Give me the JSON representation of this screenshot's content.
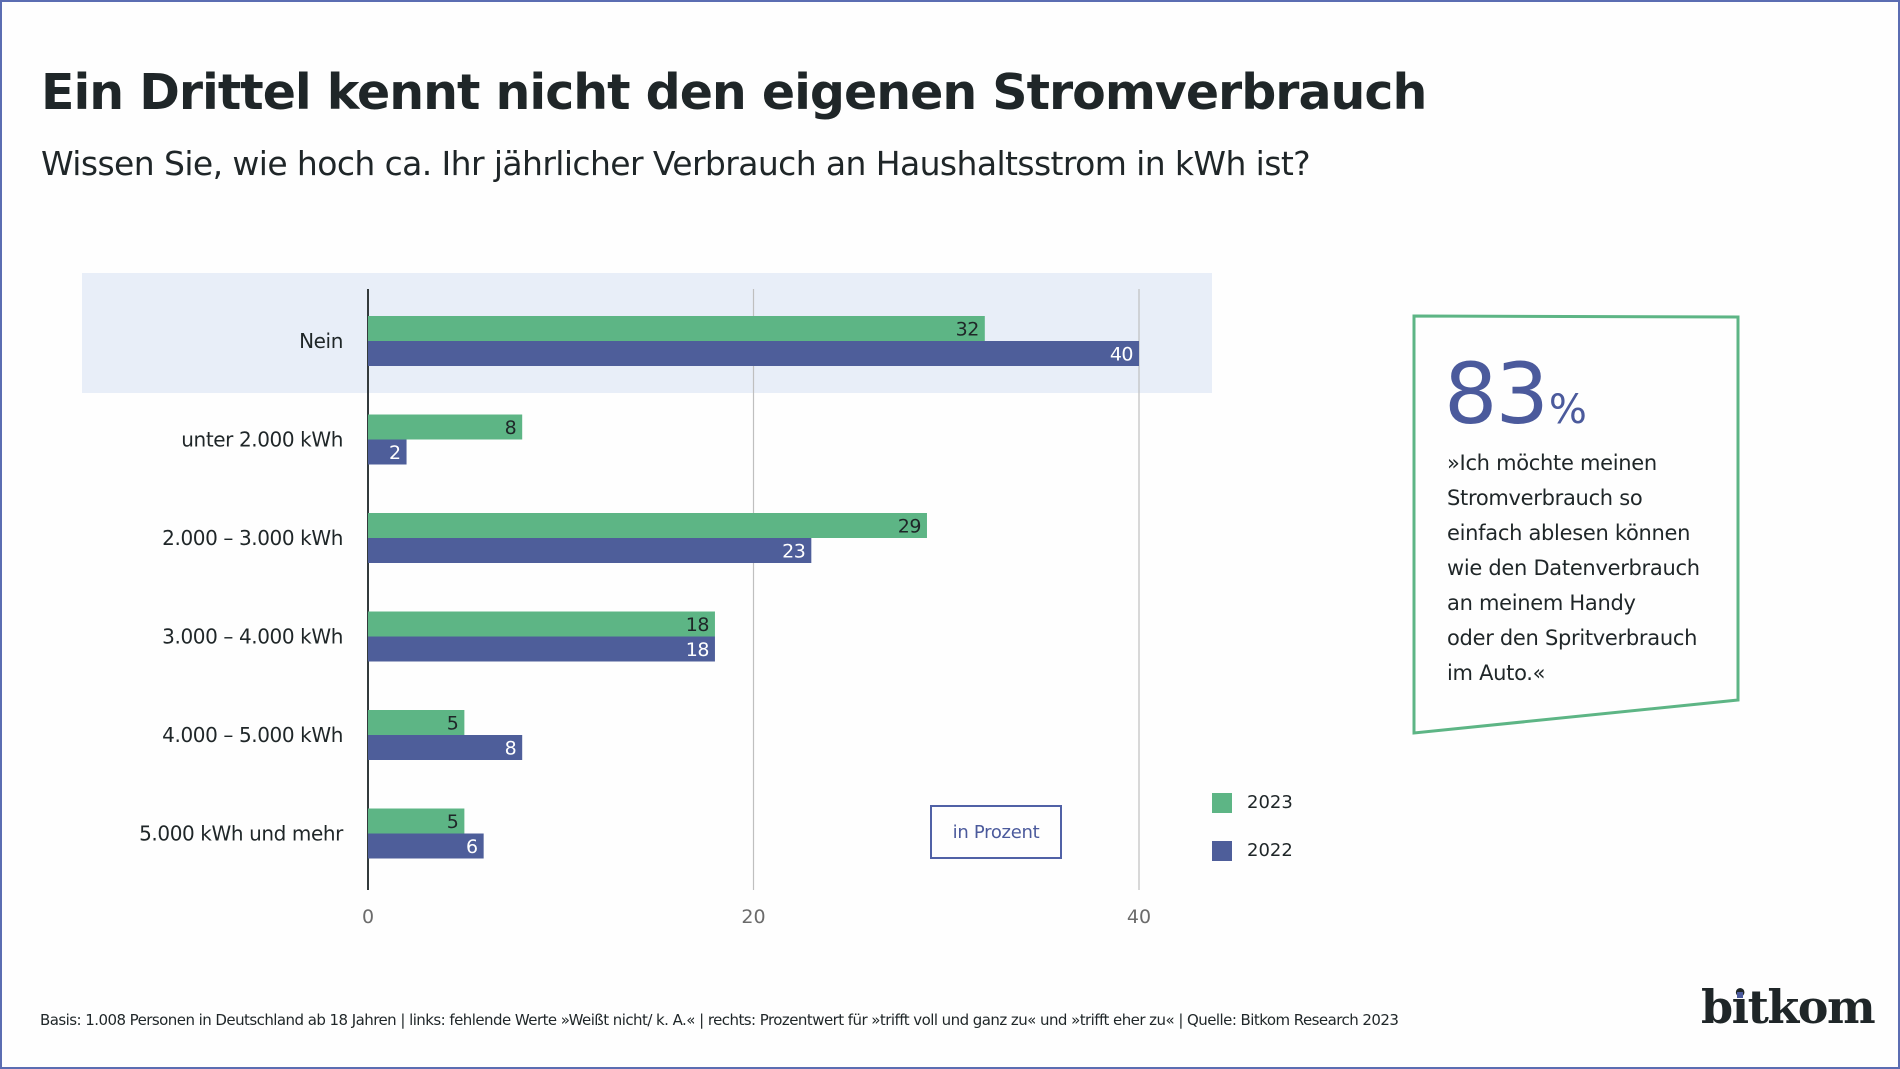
{
  "header": {
    "title": "Ein Drittel kennt nicht den eigenen Stromverbrauch",
    "subtitle": "Wissen Sie, wie hoch ca. Ihr jährlicher Verbrauch an Haushaltsstrom in kWh ist?"
  },
  "colors": {
    "series_2023": "#5db585",
    "series_2022": "#4e5e9a",
    "highlight_band": "#e8eef8",
    "axis": "#333a3c",
    "gridline": "#bfbfbf",
    "callout_border": "#5db585",
    "accent": "#4b5a9c",
    "frame": "#5b6db2"
  },
  "chart_data": {
    "type": "bar",
    "orientation": "horizontal",
    "title": "Ein Drittel kennt nicht den eigenen Stromverbrauch",
    "subtitle": "Wissen Sie, wie hoch ca. Ihr jährlicher Verbrauch an Haushaltsstrom in kWh ist?",
    "categories": [
      "Nein",
      "unter 2.000 kWh",
      "2.000 – 3.000 kWh",
      "3.000 – 4.000 kWh",
      "4.000 – 5.000 kWh",
      "5.000 kWh und mehr"
    ],
    "series": [
      {
        "name": "2023",
        "color": "#5db585",
        "values": [
          32,
          8,
          29,
          18,
          5,
          5
        ]
      },
      {
        "name": "2022",
        "color": "#4e5e9a",
        "values": [
          40,
          2,
          23,
          18,
          8,
          6
        ]
      }
    ],
    "highlighted_category": "Nein",
    "xlabel": "",
    "ylabel": "",
    "xlim": [
      0,
      44
    ],
    "xticks": [
      0,
      20,
      40
    ],
    "xtick_labels": [
      "0",
      "20",
      "40"
    ],
    "grid": true,
    "unit_label": "in Prozent",
    "legend": {
      "entries": [
        "2023",
        "2022"
      ],
      "placement": "bottom-right"
    },
    "data_labels": true
  },
  "callout": {
    "value": "83",
    "unit": "%",
    "quote_lines": [
      "»Ich möchte meinen",
      "Stromverbrauch so",
      "einfach ablesen können",
      "wie den Datenverbrauch",
      "an meinem Handy",
      "oder den Spritverbrauch",
      "im Auto.«"
    ]
  },
  "legend": {
    "items": [
      {
        "label": "2023"
      },
      {
        "label": "2022"
      }
    ]
  },
  "unit_box": {
    "label": "in Prozent"
  },
  "footer": {
    "text": "Basis: 1.008 Personen in Deutschland ab 18 Jahren | links: fehlende Werte »Weißt nicht/ k. A.« | rechts: Prozentwert für »trifft voll und ganz zu« und »trifft eher zu« | Quelle: Bitkom Research 2023"
  },
  "logo": {
    "text": "bitkom"
  }
}
